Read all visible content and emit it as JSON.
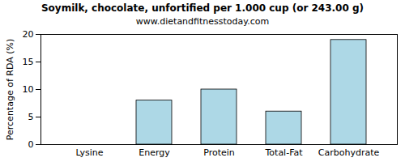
{
  "chart_data": {
    "type": "bar",
    "title": "Soymilk, chocolate, unfortified per 1.000 cup (or 243.00 g)",
    "subtitle": "www.dietandfitnesstoday.com",
    "y_label": "Percentage of RDA (%)",
    "categories": [
      "Lysine",
      "Energy",
      "Protein",
      "Total-Fat",
      "Carbohydrate"
    ],
    "values": [
      0,
      8,
      10,
      6,
      19
    ],
    "color": "#add8e6",
    "ylim": [
      0,
      20
    ],
    "yticks": [
      0,
      5,
      10,
      15,
      20
    ],
    "grid": false
  }
}
